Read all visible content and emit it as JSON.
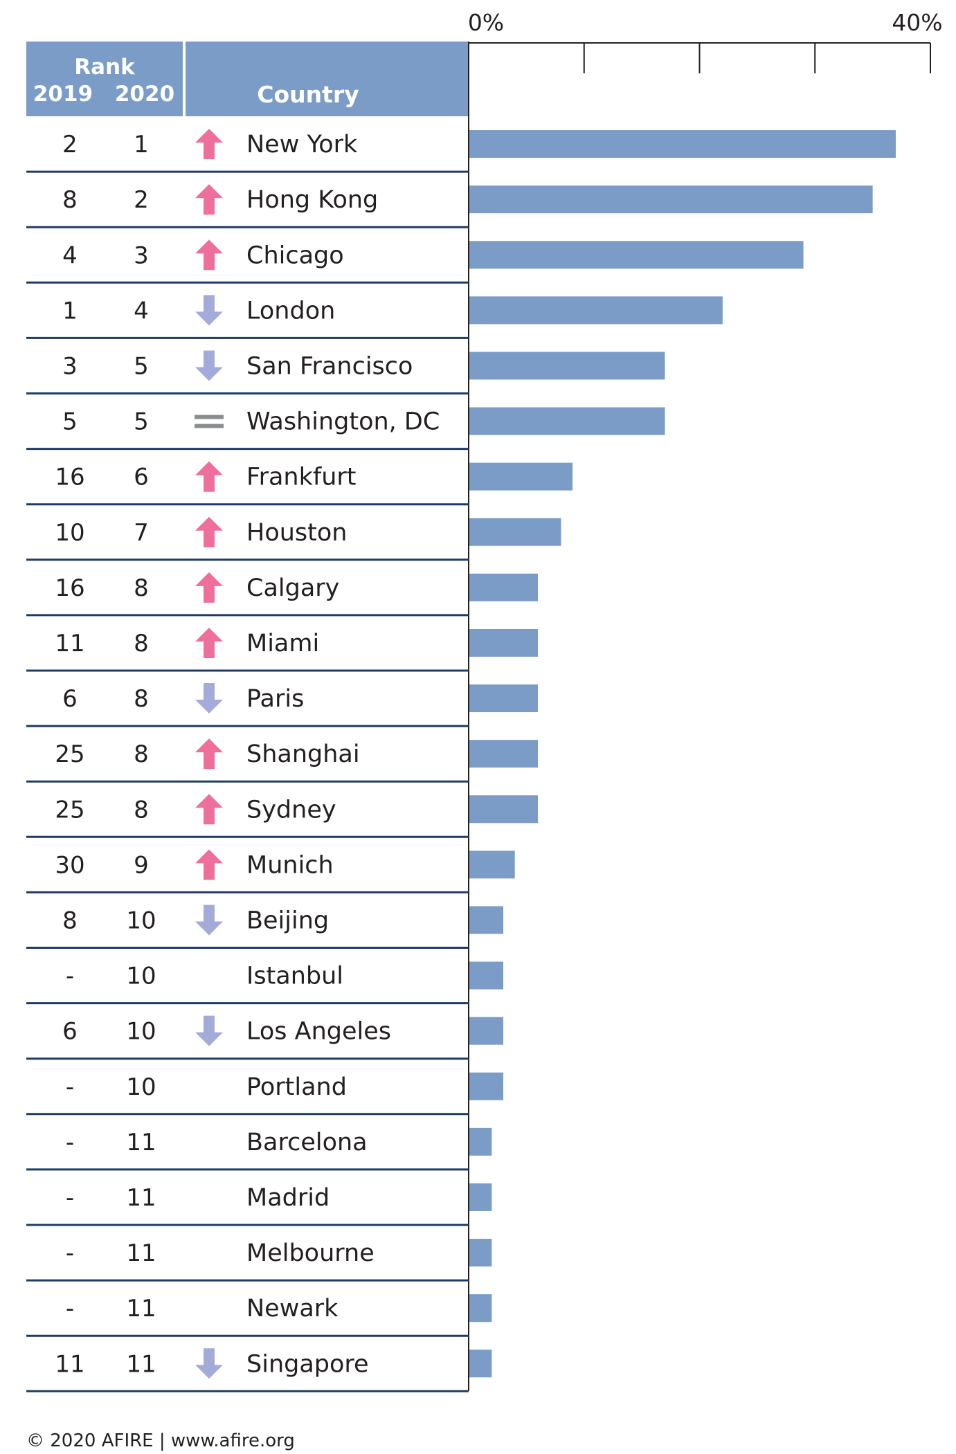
{
  "header": {
    "rank_label": "Rank",
    "year_2019": "2019",
    "year_2020": "2020",
    "country_label": "Country"
  },
  "axis": {
    "tick_start_label": "0%",
    "tick_end_label": "40%",
    "min": 0,
    "max": 40,
    "ticks": [
      0,
      10,
      20,
      30,
      40
    ]
  },
  "colors": {
    "header_bg": "#7a9cc6",
    "bar": "#7a9cc6",
    "arrow_up": "#ee6f9b",
    "arrow_down": "#a3acd8",
    "equal": "#8a8c8e",
    "rule": "#1f3a63",
    "text": "#231f20"
  },
  "chart_data": {
    "type": "bar",
    "orientation": "horizontal",
    "xlim": [
      0,
      40
    ],
    "categories": [
      "New York",
      "Hong Kong",
      "Chicago",
      "London",
      "San Francisco",
      "Washington, DC",
      "Frankfurt",
      "Houston",
      "Calgary",
      "Miami",
      "Paris",
      "Shanghai",
      "Sydney",
      "Munich",
      "Beijing",
      "Istanbul",
      "Los Angeles",
      "Portland",
      "Barcelona",
      "Madrid",
      "Melbourne",
      "Newark",
      "Singapore"
    ],
    "values": [
      37,
      35,
      29,
      22,
      17,
      17,
      9,
      8,
      6,
      6,
      6,
      6,
      6,
      4,
      3,
      3,
      3,
      3,
      2,
      2,
      2,
      2,
      2
    ],
    "rank_2019": [
      "2",
      "8",
      "4",
      "1",
      "3",
      "5",
      "16",
      "10",
      "16",
      "11",
      "6",
      "25",
      "25",
      "30",
      "8",
      "-",
      "6",
      "-",
      "-",
      "-",
      "-",
      "-",
      "11"
    ],
    "rank_2020": [
      "1",
      "2",
      "3",
      "4",
      "5",
      "5",
      "6",
      "7",
      "8",
      "8",
      "8",
      "8",
      "8",
      "9",
      "10",
      "10",
      "10",
      "10",
      "11",
      "11",
      "11",
      "11",
      "11"
    ],
    "trend": [
      "up",
      "up",
      "up",
      "down",
      "down",
      "equal",
      "up",
      "up",
      "up",
      "up",
      "down",
      "up",
      "up",
      "up",
      "down",
      "none",
      "down",
      "none",
      "none",
      "none",
      "none",
      "none",
      "down"
    ]
  },
  "footer": {
    "credit": "© 2020 AFIRE | www.afire.org"
  }
}
